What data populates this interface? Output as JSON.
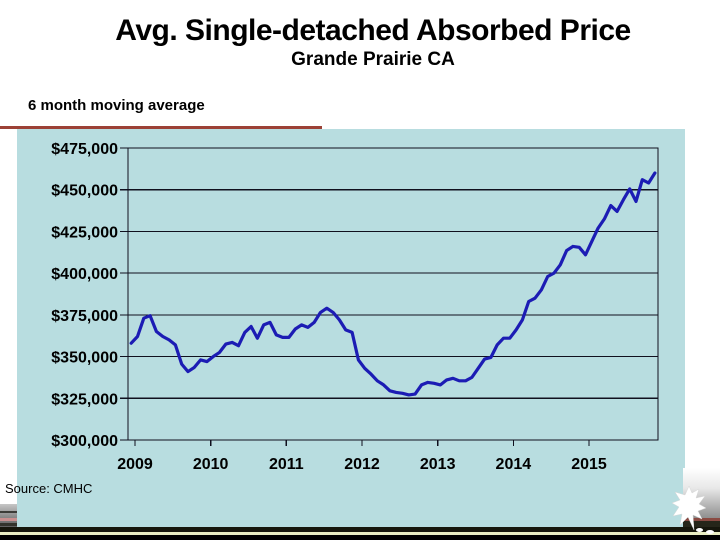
{
  "slide": {
    "title": "Avg. Single-detached Absorbed Price",
    "subtitle": "Grande Prairie CA",
    "note": "6 month moving average",
    "source": "Source: CMHC"
  },
  "colors": {
    "plot_bg": "#b8dde0",
    "line": "#1c1cb4",
    "grid": "#10101e",
    "note_rule": "#9c4136",
    "band_cream": "#e9edc2"
  },
  "chart_data": {
    "type": "line",
    "title": "Avg. Single-detached Absorbed Price",
    "subtitle": "Grande Prairie CA",
    "series_name": "6 month moving average",
    "frequency": "monthly",
    "x_range": [
      "2009-01",
      "2015-12"
    ],
    "x_tick_labels": [
      "2009",
      "2010",
      "2011",
      "2012",
      "2013",
      "2014",
      "2015"
    ],
    "y_tick_labels": [
      "$475,000",
      "$450,000",
      "$425,000",
      "$400,000",
      "$375,000",
      "$350,000",
      "$325,000",
      "$300,000"
    ],
    "ylim": [
      300000,
      475000
    ],
    "y_step": 25000,
    "grid": true,
    "legend": "none",
    "values": [
      358000,
      362000,
      373000,
      374500,
      365000,
      362000,
      360000,
      357000,
      345500,
      341000,
      343500,
      348000,
      347000,
      350000,
      352500,
      357500,
      358500,
      356500,
      364500,
      368000,
      361000,
      369000,
      370500,
      363000,
      361500,
      361500,
      366500,
      369000,
      367500,
      370500,
      376500,
      379000,
      376500,
      372000,
      366000,
      364500,
      348000,
      343000,
      339500,
      335500,
      333000,
      329500,
      328500,
      328000,
      327000,
      327500,
      333000,
      334500,
      334000,
      333000,
      336000,
      337000,
      335500,
      335500,
      337500,
      343000,
      348500,
      349500,
      357000,
      361000,
      361000,
      366000,
      372000,
      383000,
      385000,
      390000,
      398000,
      400000,
      405000,
      413500,
      416000,
      415500,
      411000,
      419000,
      427000,
      432500,
      440500,
      437000,
      444000,
      450500,
      443000,
      456000,
      454000,
      460000
    ]
  }
}
